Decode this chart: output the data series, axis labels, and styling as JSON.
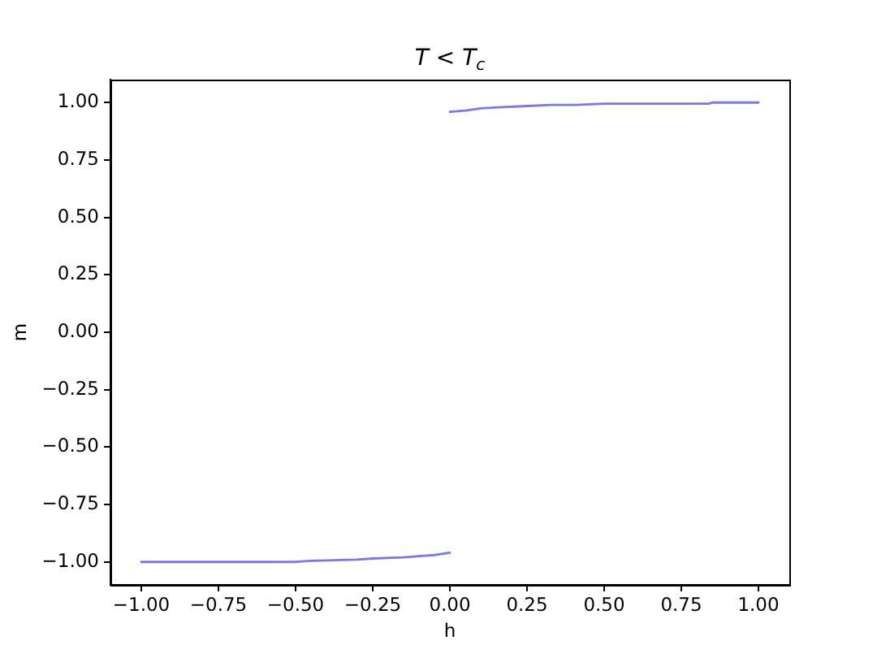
{
  "chart_data": {
    "type": "line",
    "title": "T < T$_{c}$",
    "xlabel": "h",
    "ylabel": "m",
    "series": [
      {
        "color": "#7878f0",
        "x": [
          -1.0,
          -0.75,
          -0.5,
          -0.45,
          -0.3,
          -0.25,
          -0.15,
          -0.1,
          -0.05,
          0.0
        ],
        "values": [
          -1.0,
          -1.0,
          -1.0,
          -0.995,
          -0.99,
          -0.985,
          -0.98,
          -0.975,
          -0.97,
          -0.96
        ]
      },
      {
        "color": "#7878f0",
        "x": [
          0.0,
          0.05,
          0.1,
          0.17,
          0.25,
          0.33,
          0.41,
          0.5,
          0.6,
          0.7,
          0.84,
          0.85,
          1.0
        ],
        "values": [
          0.96,
          0.965,
          0.975,
          0.98,
          0.985,
          0.99,
          0.99,
          0.995,
          0.995,
          0.995,
          0.995,
          1.0,
          1.0
        ]
      }
    ],
    "xlim": [
      -1.1,
      1.1
    ],
    "ylim": [
      -1.1,
      1.1
    ],
    "xticks": [
      {
        "value": -1,
        "label": "−1.00"
      },
      {
        "value": -0.75,
        "label": "−0.75"
      },
      {
        "value": -0.5,
        "label": "−0.50"
      },
      {
        "value": -0.25,
        "label": "−0.25"
      },
      {
        "value": 0,
        "label": "0.00"
      },
      {
        "value": 0.25,
        "label": "0.25"
      },
      {
        "value": 0.5,
        "label": "0.50"
      },
      {
        "value": 0.75,
        "label": "0.75"
      },
      {
        "value": 1,
        "label": "1.00"
      }
    ],
    "yticks": [
      {
        "value": -1,
        "label": "−1.00"
      },
      {
        "value": -0.75,
        "label": "−0.75"
      },
      {
        "value": -0.5,
        "label": "−0.50"
      },
      {
        "value": -0.25,
        "label": "−0.25"
      },
      {
        "value": 0,
        "label": "0.00"
      },
      {
        "value": 0.25,
        "label": "0.25"
      },
      {
        "value": 0.5,
        "label": "0.50"
      },
      {
        "value": 0.75,
        "label": "0.75"
      },
      {
        "value": 1,
        "label": "1.00"
      }
    ],
    "grid": false,
    "legend": false,
    "marker": "none",
    "line_style": "solid"
  }
}
